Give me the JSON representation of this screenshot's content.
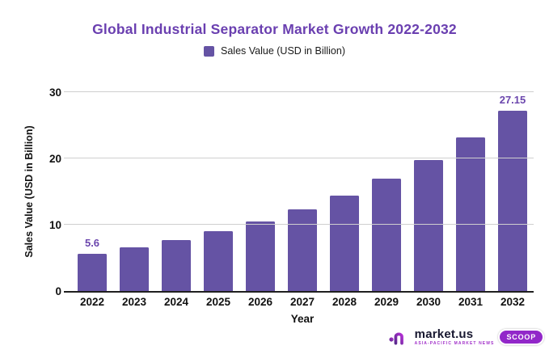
{
  "chart": {
    "title": "Global Industrial Separator Market Growth 2022-2032",
    "legend_label": "Sales Value (USD in Billion)",
    "x_axis_title": "Year",
    "y_axis_title": "Sales Value (USD in Billion)"
  },
  "chart_data": {
    "type": "bar",
    "title": "Global Industrial Separator Market Growth 2022-2032",
    "xlabel": "Year",
    "ylabel": "Sales Value (USD in Billion)",
    "categories": [
      "2022",
      "2023",
      "2024",
      "2025",
      "2026",
      "2027",
      "2028",
      "2029",
      "2030",
      "2031",
      "2032"
    ],
    "values": [
      5.6,
      6.56,
      7.68,
      8.99,
      10.53,
      12.33,
      14.43,
      16.9,
      19.79,
      23.17,
      27.15
    ],
    "point_labels": [
      "5.6",
      "",
      "",
      "",
      "",
      "",
      "",
      "",
      "",
      "",
      "27.15"
    ],
    "ylim": [
      0,
      30
    ],
    "yticks": [
      0,
      10,
      20,
      30
    ],
    "grid": true,
    "legend_position": "top",
    "legend_entries": [
      "Sales Value (USD in Billion)"
    ]
  },
  "colors": {
    "bar": "#6553a4",
    "title": "#6a3fb0",
    "data_label": "#6b46ad",
    "gridline": "#cfcfcf",
    "axis_text": "#111111",
    "logo_purple": "#9227c9"
  },
  "branding": {
    "name": "market.us",
    "tagline": "ASIA-PACIFIC MARKET NEWS",
    "badge": "SCOOP"
  }
}
